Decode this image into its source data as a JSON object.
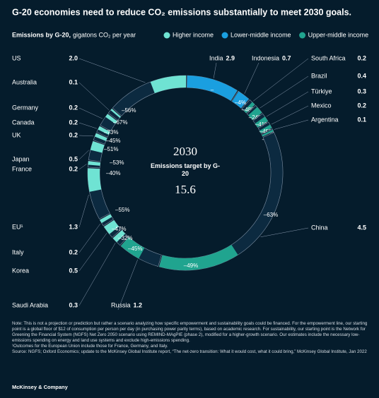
{
  "chart_data": {
    "type": "radial-bar",
    "title": "G-20 economies need to reduce CO₂ emissions substantially to meet 2030 goals.",
    "subtitle_bold": "Emissions by G-20,",
    "subtitle": "gigatons CO₂ per year",
    "categories": [
      "India",
      "Indonesia",
      "South Africa",
      "Brazil",
      "Türkiye",
      "Mexico",
      "Argentina",
      "China",
      "Russia",
      "Saudi Arabia",
      "Korea",
      "Italy",
      "EU¹",
      "France",
      "Japan",
      "UK",
      "Canada",
      "Germany",
      "Australia",
      "US"
    ],
    "series": [
      {
        "name": "Higher income",
        "color": "#6fe3d3",
        "values": [
          null,
          null,
          null,
          null,
          null,
          null,
          null,
          null,
          null,
          0.3,
          0.5,
          0.2,
          1.3,
          0.2,
          0.5,
          0.2,
          0.2,
          0.2,
          0.1,
          2.0
        ],
        "value_labels": [
          null,
          null,
          null,
          null,
          null,
          null,
          null,
          null,
          null,
          "0.3",
          "0.5",
          "0.2",
          "1.3",
          "0.2",
          "0.5",
          "0.2",
          "0.2",
          "0.2",
          "0.1",
          "2.0"
        ]
      },
      {
        "name": "Lower-middle income",
        "color": "#1a9fe0",
        "values": [
          2.9,
          0.7,
          null,
          null,
          null,
          null,
          null,
          null,
          null,
          null,
          null,
          null,
          null,
          null,
          null,
          null,
          null,
          null,
          null,
          null
        ],
        "value_labels": [
          "2.9",
          "0.7",
          null,
          null,
          null,
          null,
          null,
          null,
          null,
          null,
          null,
          null,
          null,
          null,
          null,
          null,
          null,
          null,
          null,
          null
        ]
      },
      {
        "name": "Upper-middle income",
        "color": "#20a48f",
        "values": [
          null,
          null,
          0.2,
          0.4,
          0.3,
          0.2,
          0.1,
          4.5,
          1.2,
          null,
          null,
          null,
          null,
          null,
          null,
          null,
          null,
          null,
          null,
          null
        ],
        "value_labels": [
          null,
          null,
          "0.2",
          "0.4",
          "0.3",
          "0.2",
          "0.1",
          "4.5",
          "1.2",
          null,
          null,
          null,
          null,
          null,
          null,
          null,
          null,
          null,
          null,
          null
        ]
      }
    ],
    "changes": [
      null,
      -4,
      -48,
      -24,
      -41,
      -45,
      -31,
      -63,
      -49,
      -45,
      -32,
      -47,
      -55,
      -40,
      -53,
      -51,
      -45,
      -73,
      -67,
      -56
    ],
    "change_labels": [
      "–",
      "–4%",
      "–48%",
      "–24%",
      "–41%",
      "–45%",
      "–31%",
      "–63%",
      "–49%",
      "–45%",
      "–32%",
      "–47%",
      "–55%",
      "–40%",
      "–53%",
      "–51%",
      "–45%",
      "–73%",
      "–67%",
      "–56%"
    ],
    "center": {
      "year": "2030",
      "label": "Emissions target by G-20",
      "total": 15.6
    }
  },
  "notes": {
    "note": "Note: This is not a projection or prediction but rather a scenario analyzing how specific empowerment and sustainability goals could be financed. For the empowerment line, our starting point is a global floor of $12 of consumption per person per day (in purchasing power parity terms), based on academic research. For sustainability, our starting point is the Network for Greening the Financial System (NGFS) Net Zero 2050 scenario using REMIND-MAgPIE (phase 2), modified for a higher-growth scenario. Our estimates include the necessary low-emissions spending on energy and land use systems and exclude high-emissions spending.",
    "footnote": "¹Outcomes for the European Union include those for France, Germany, and Italy.",
    "source": "Source: NGFS; Oxford Economics; update to the McKinsey Global Institute report, “The net-zero transition: What it would cost, what it could bring,” McKinsey Global Institute, Jan 2022",
    "footer": "McKinsey & Company"
  }
}
